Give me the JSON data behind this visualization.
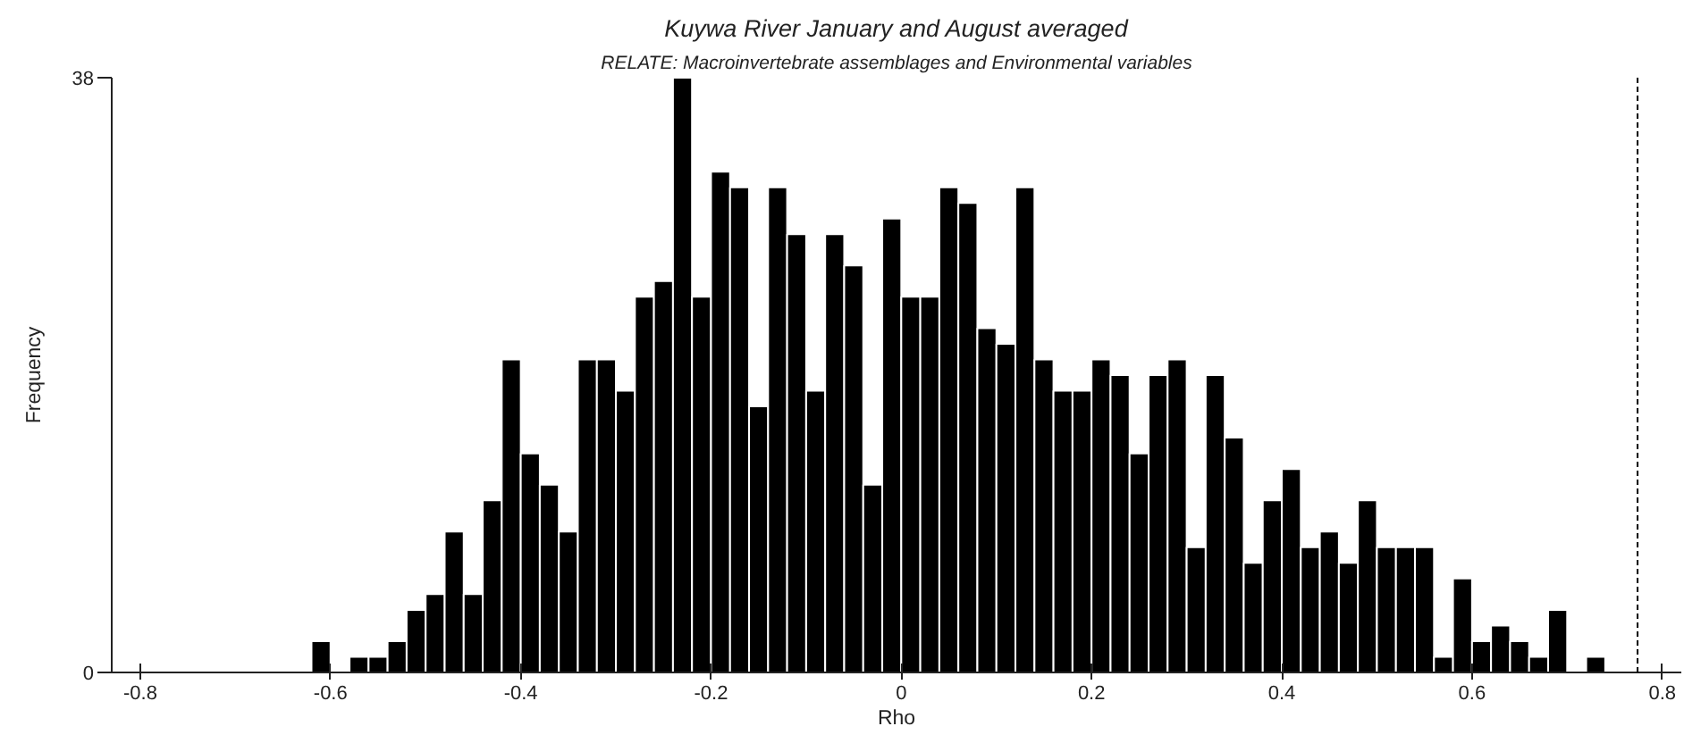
{
  "chart_data": {
    "type": "histogram",
    "title": "Kuywa River January and August averaged",
    "subtitle": "RELATE: Macroinvertebrate assemblages and Environmental variables",
    "xlabel": "Rho",
    "ylabel": "Frequency",
    "color": "#000000",
    "bins": [
      -0.62,
      -0.6,
      -0.58,
      -0.56,
      -0.54,
      -0.52,
      -0.5,
      -0.48,
      -0.46,
      -0.44,
      -0.42,
      -0.4,
      -0.38,
      -0.36,
      -0.34,
      -0.32,
      -0.3,
      -0.28,
      -0.26,
      -0.24,
      -0.22,
      -0.2,
      -0.18,
      -0.16,
      -0.14,
      -0.12,
      -0.1,
      -0.08,
      -0.06,
      -0.04,
      -0.02,
      0,
      0.02,
      0.04,
      0.06,
      0.08,
      0.1,
      0.12,
      0.14,
      0.16,
      0.18,
      0.2,
      0.22,
      0.24,
      0.26,
      0.28,
      0.3,
      0.32,
      0.34,
      0.36,
      0.38,
      0.4,
      0.42,
      0.44,
      0.46,
      0.48,
      0.5,
      0.52,
      0.54,
      0.56,
      0.58,
      0.6,
      0.62,
      0.64,
      0.66,
      0.68,
      0.7,
      0.72,
      0.74
    ],
    "values": [
      2,
      0,
      1,
      1,
      2,
      4,
      5,
      9,
      5,
      11,
      20,
      14,
      12,
      9,
      20,
      20,
      18,
      24,
      25,
      38,
      24,
      32,
      31,
      17,
      31,
      28,
      18,
      28,
      26,
      12,
      29,
      24,
      24,
      31,
      30,
      22,
      21,
      31,
      20,
      18,
      18,
      20,
      19,
      14,
      19,
      20,
      8,
      19,
      15,
      7,
      11,
      13,
      8,
      9,
      7,
      11,
      8,
      8,
      8,
      1,
      6,
      2,
      3,
      2,
      1,
      4,
      0,
      1
    ],
    "xlim": [
      -0.83,
      0.82
    ],
    "ylim": [
      0,
      38
    ],
    "xticks": [
      -0.8,
      -0.6,
      -0.4,
      -0.2,
      0,
      0.2,
      0.4,
      0.6,
      0.8
    ],
    "yticks": [
      0,
      38
    ],
    "ref_lines": [
      {
        "axis": "x",
        "value": 0.774,
        "color": "#000000",
        "line_style": "dashed"
      }
    ]
  }
}
